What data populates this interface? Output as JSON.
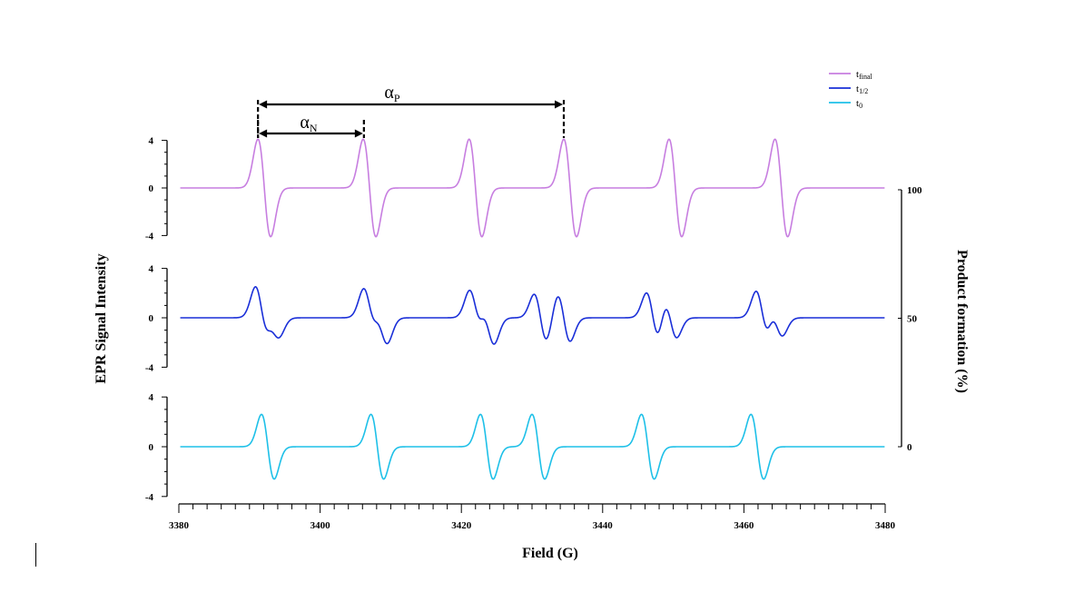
{
  "chart_data": {
    "type": "line",
    "title": "",
    "xlabel": "Field (G)",
    "ylabel": "EPR Signal Intensity",
    "y2label": "Product formation (%)",
    "xlim": [
      3380,
      3480
    ],
    "x_ticks": [
      3380,
      3400,
      3420,
      3440,
      3460,
      3480
    ],
    "panel_ylim": [
      -4,
      4
    ],
    "panel_ticks": [
      4,
      0,
      -4
    ],
    "y2lim": [
      0,
      100
    ],
    "y2_ticks": [
      100,
      50,
      0
    ],
    "legend_position": "top-right",
    "series": [
      {
        "name": "t_final",
        "label_main": "t",
        "label_sub": "final",
        "color": "#C77EE0",
        "peaks": [
          {
            "center": 3392.1,
            "amplitude": 4.1
          },
          {
            "center": 3407.0,
            "amplitude": 4.1
          },
          {
            "center": 3422.0,
            "amplitude": 4.1
          },
          {
            "center": 3435.4,
            "amplitude": 4.1
          },
          {
            "center": 3450.3,
            "amplitude": 4.1
          },
          {
            "center": 3465.3,
            "amplitude": 4.1
          }
        ]
      },
      {
        "name": "t_1/2",
        "label_main": "t",
        "label_sub": "1/2",
        "color": "#1A2FD8",
        "peaks": [
          {
            "center": 3391.7,
            "amplitude": 2.4
          },
          {
            "center": 3393.4,
            "amplitude": 1.4
          },
          {
            "center": 3407.0,
            "amplitude": 2.2
          },
          {
            "center": 3408.7,
            "amplitude": 1.9
          },
          {
            "center": 3422.0,
            "amplitude": 2.1
          },
          {
            "center": 3423.8,
            "amplitude": 2.0
          },
          {
            "center": 3431.2,
            "amplitude": 1.9
          },
          {
            "center": 3434.5,
            "amplitude": 1.9
          },
          {
            "center": 3447.1,
            "amplitude": 2.0
          },
          {
            "center": 3449.6,
            "amplitude": 1.6
          },
          {
            "center": 3462.6,
            "amplitude": 2.1
          },
          {
            "center": 3464.6,
            "amplitude": 1.4
          }
        ]
      },
      {
        "name": "t_0",
        "label_main": "t",
        "label_sub": "0",
        "color": "#1EC0E8",
        "peaks": [
          {
            "center": 3392.6,
            "amplitude": 2.6
          },
          {
            "center": 3408.1,
            "amplitude": 2.6
          },
          {
            "center": 3423.6,
            "amplitude": 2.6
          },
          {
            "center": 3430.9,
            "amplitude": 2.6
          },
          {
            "center": 3446.4,
            "amplitude": 2.6
          },
          {
            "center": 3461.9,
            "amplitude": 2.6
          }
        ]
      }
    ],
    "annotations": [
      {
        "symbol": "α",
        "subscript": "P",
        "x_start": 3391.2,
        "x_end": 3434.5
      },
      {
        "symbol": "α",
        "subscript": "N",
        "x_start": 3391.2,
        "x_end": 3406.2
      }
    ]
  }
}
